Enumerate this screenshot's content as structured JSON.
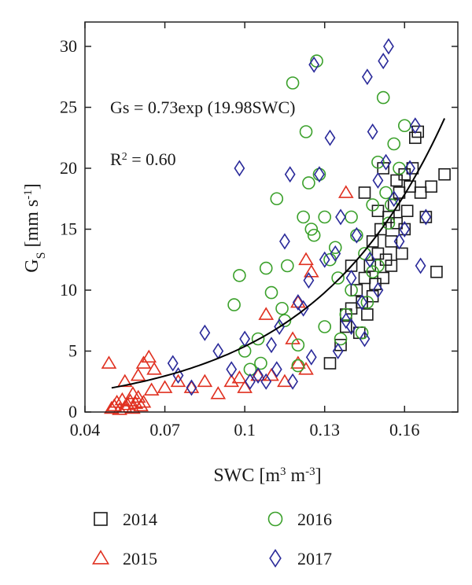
{
  "chart_data": {
    "type": "scatter",
    "xlabel": {
      "main": "SWC [m",
      "sup1": "3",
      "mid": " m",
      "sup2": "-3",
      "end": "]"
    },
    "ylabel": {
      "main": "G",
      "sub": "S",
      "rest": " [mm s",
      "sup": "-1",
      "end": "]"
    },
    "xlim": [
      0.04,
      0.18
    ],
    "ylim": [
      0,
      32
    ],
    "x_ticks": [
      0.04,
      0.07,
      0.1,
      0.13,
      0.16
    ],
    "x_tick_labels": [
      "0.04",
      "0.07",
      "0.1",
      "0.13",
      "0.16"
    ],
    "y_ticks": [
      0,
      5,
      10,
      15,
      20,
      25,
      30
    ],
    "y_tick_labels": [
      "0",
      "5",
      "10",
      "15",
      "20",
      "25",
      "30"
    ],
    "grid": false,
    "legend_position": "bottom",
    "annotations": {
      "equation": "Gs = 0.73exp (19.98SWC)",
      "r2_main": "R",
      "r2_sup": "2",
      "r2_value": " = 0.60"
    },
    "fit": {
      "a": 0.73,
      "b": 19.98,
      "x_range": [
        0.05,
        0.175
      ],
      "color": "#000000"
    },
    "series": [
      {
        "name": "2014",
        "marker": "square",
        "color": "#1a1a1a",
        "points": [
          [
            0.132,
            4
          ],
          [
            0.136,
            5.5
          ],
          [
            0.138,
            7
          ],
          [
            0.14,
            8.5
          ],
          [
            0.142,
            10
          ],
          [
            0.144,
            9
          ],
          [
            0.145,
            11
          ],
          [
            0.146,
            8
          ],
          [
            0.147,
            12
          ],
          [
            0.148,
            14
          ],
          [
            0.149,
            10.5
          ],
          [
            0.15,
            13
          ],
          [
            0.151,
            15
          ],
          [
            0.152,
            11
          ],
          [
            0.153,
            12.5
          ],
          [
            0.154,
            16
          ],
          [
            0.155,
            14
          ],
          [
            0.156,
            17
          ],
          [
            0.157,
            15.5
          ],
          [
            0.158,
            18
          ],
          [
            0.159,
            13
          ],
          [
            0.16,
            19.5
          ],
          [
            0.161,
            16.5
          ],
          [
            0.162,
            18.5
          ],
          [
            0.163,
            20
          ],
          [
            0.164,
            22.5
          ],
          [
            0.165,
            23
          ],
          [
            0.166,
            18
          ],
          [
            0.168,
            16
          ],
          [
            0.17,
            18.5
          ],
          [
            0.172,
            11.5
          ],
          [
            0.175,
            19.5
          ],
          [
            0.145,
            18
          ],
          [
            0.14,
            12
          ],
          [
            0.148,
            9.5
          ],
          [
            0.152,
            20
          ],
          [
            0.155,
            12
          ],
          [
            0.16,
            15
          ],
          [
            0.143,
            6.5
          ],
          [
            0.138,
            8
          ],
          [
            0.15,
            16.5
          ],
          [
            0.157,
            19
          ]
        ]
      },
      {
        "name": "2015",
        "marker": "triangle",
        "color": "#e03020",
        "points": [
          [
            0.049,
            4
          ],
          [
            0.05,
            0.3
          ],
          [
            0.051,
            0.5
          ],
          [
            0.052,
            0.8
          ],
          [
            0.053,
            0.2
          ],
          [
            0.054,
            1
          ],
          [
            0.055,
            0.4
          ],
          [
            0.056,
            0.6
          ],
          [
            0.057,
            0.9
          ],
          [
            0.058,
            0.3
          ],
          [
            0.059,
            0.7
          ],
          [
            0.06,
            1.2
          ],
          [
            0.061,
            0.5
          ],
          [
            0.062,
            0.8
          ],
          [
            0.055,
            2.5
          ],
          [
            0.058,
            1.5
          ],
          [
            0.06,
            3
          ],
          [
            0.062,
            4
          ],
          [
            0.064,
            4.5
          ],
          [
            0.066,
            3.5
          ],
          [
            0.065,
            1.8
          ],
          [
            0.07,
            2
          ],
          [
            0.075,
            2.5
          ],
          [
            0.08,
            2
          ],
          [
            0.085,
            2.5
          ],
          [
            0.09,
            1.5
          ],
          [
            0.095,
            2.5
          ],
          [
            0.1,
            2
          ],
          [
            0.105,
            3
          ],
          [
            0.11,
            3
          ],
          [
            0.115,
            2.5
          ],
          [
            0.12,
            4
          ],
          [
            0.123,
            3.5
          ],
          [
            0.118,
            6
          ],
          [
            0.12,
            9
          ],
          [
            0.123,
            12.5
          ],
          [
            0.125,
            11.5
          ],
          [
            0.138,
            18
          ],
          [
            0.098,
            2.8
          ],
          [
            0.108,
            8
          ]
        ]
      },
      {
        "name": "2016",
        "marker": "circle",
        "color": "#3aa02a",
        "points": [
          [
            0.096,
            8.8
          ],
          [
            0.098,
            11.2
          ],
          [
            0.1,
            5
          ],
          [
            0.102,
            3.5
          ],
          [
            0.105,
            6
          ],
          [
            0.108,
            11.8
          ],
          [
            0.11,
            9.8
          ],
          [
            0.112,
            17.5
          ],
          [
            0.114,
            8.5
          ],
          [
            0.116,
            12
          ],
          [
            0.118,
            27
          ],
          [
            0.12,
            5.5
          ],
          [
            0.122,
            16
          ],
          [
            0.124,
            18.8
          ],
          [
            0.125,
            15
          ],
          [
            0.126,
            14.5
          ],
          [
            0.127,
            28.8
          ],
          [
            0.128,
            19.5
          ],
          [
            0.13,
            16
          ],
          [
            0.132,
            12.5
          ],
          [
            0.134,
            13.5
          ],
          [
            0.136,
            6
          ],
          [
            0.138,
            8
          ],
          [
            0.14,
            10
          ],
          [
            0.142,
            14.5
          ],
          [
            0.144,
            6.5
          ],
          [
            0.146,
            9
          ],
          [
            0.148,
            17
          ],
          [
            0.15,
            20.5
          ],
          [
            0.152,
            25.8
          ],
          [
            0.154,
            15.5
          ],
          [
            0.156,
            22
          ],
          [
            0.158,
            20
          ],
          [
            0.16,
            23.5
          ],
          [
            0.123,
            23
          ],
          [
            0.115,
            7.5
          ],
          [
            0.135,
            11
          ],
          [
            0.145,
            13
          ],
          [
            0.15,
            12
          ],
          [
            0.155,
            17
          ],
          [
            0.12,
            3.8
          ],
          [
            0.106,
            4
          ],
          [
            0.13,
            7
          ],
          [
            0.14,
            16
          ],
          [
            0.148,
            11.5
          ],
          [
            0.153,
            18
          ]
        ]
      },
      {
        "name": "2017",
        "marker": "diamond",
        "color": "#2a2a9a",
        "points": [
          [
            0.073,
            4
          ],
          [
            0.075,
            3
          ],
          [
            0.08,
            2
          ],
          [
            0.085,
            6.5
          ],
          [
            0.09,
            5
          ],
          [
            0.095,
            3.5
          ],
          [
            0.098,
            20
          ],
          [
            0.1,
            6
          ],
          [
            0.102,
            2.5
          ],
          [
            0.105,
            3
          ],
          [
            0.108,
            2.5
          ],
          [
            0.11,
            5.5
          ],
          [
            0.113,
            7
          ],
          [
            0.115,
            14
          ],
          [
            0.117,
            19.5
          ],
          [
            0.12,
            9
          ],
          [
            0.122,
            8.5
          ],
          [
            0.124,
            10.8
          ],
          [
            0.126,
            28.5
          ],
          [
            0.128,
            19.5
          ],
          [
            0.13,
            12.5
          ],
          [
            0.132,
            22.5
          ],
          [
            0.134,
            13
          ],
          [
            0.136,
            16
          ],
          [
            0.138,
            7.5
          ],
          [
            0.14,
            11
          ],
          [
            0.142,
            14.5
          ],
          [
            0.144,
            9
          ],
          [
            0.146,
            27.5
          ],
          [
            0.148,
            23
          ],
          [
            0.15,
            19
          ],
          [
            0.152,
            28.8
          ],
          [
            0.154,
            30
          ],
          [
            0.156,
            17.5
          ],
          [
            0.158,
            14
          ],
          [
            0.16,
            15
          ],
          [
            0.162,
            20
          ],
          [
            0.164,
            23.5
          ],
          [
            0.166,
            12
          ],
          [
            0.168,
            16
          ],
          [
            0.145,
            6
          ],
          [
            0.14,
            7
          ],
          [
            0.135,
            5
          ],
          [
            0.15,
            10
          ],
          [
            0.125,
            4.5
          ],
          [
            0.118,
            2.5
          ],
          [
            0.112,
            3.5
          ],
          [
            0.153,
            20.5
          ],
          [
            0.147,
            12.5
          ]
        ]
      }
    ]
  }
}
